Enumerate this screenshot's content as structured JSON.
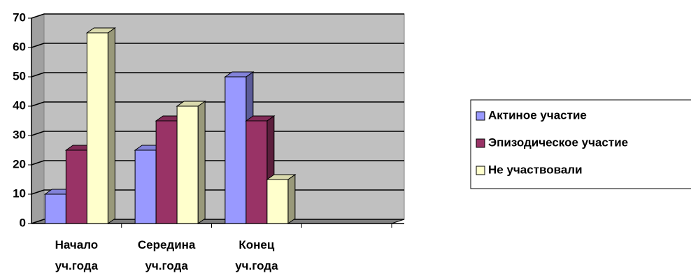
{
  "chart_data": {
    "type": "bar",
    "categories": [
      "Начало уч.года",
      "Середина уч.года",
      "Конец уч.года",
      null
    ],
    "series": [
      {
        "name": "Актиное участие",
        "color": "#9999ff",
        "values": [
          10,
          25,
          50,
          null
        ]
      },
      {
        "name": "Эпизодическое участие",
        "color": "#993366",
        "values": [
          25,
          35,
          35,
          null
        ]
      },
      {
        "name": "Не участвовали",
        "color": "#ffffcc",
        "values": [
          65,
          40,
          15,
          null
        ]
      }
    ],
    "ylim": [
      0,
      70
    ],
    "yticks": [
      0,
      10,
      20,
      30,
      40,
      50,
      60,
      70
    ],
    "grid": true,
    "legend": "right"
  }
}
